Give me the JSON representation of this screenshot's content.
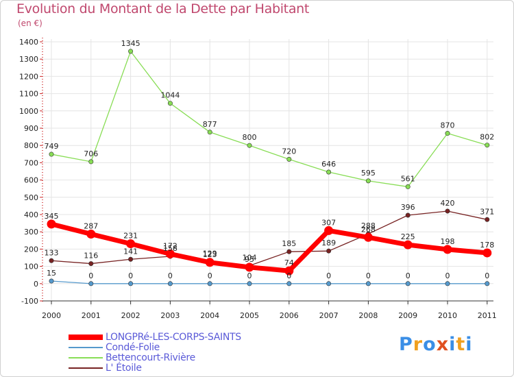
{
  "header": {
    "title": "Evolution du Montant de la Dette par Habitant",
    "unit": "(en €)"
  },
  "brand": {
    "text": "Proxiti",
    "colors": [
      "#3a8ee6",
      "#f0a020",
      "#3a8ee6",
      "#e05020",
      "#3a8ee6",
      "#f0a020",
      "#3a8ee6"
    ]
  },
  "chart_data": {
    "type": "line",
    "title": "Evolution du Montant de la Dette par Habitant",
    "ylabel": "(en €)",
    "xlabel": "",
    "x": [
      "2000",
      "2001",
      "2002",
      "2003",
      "2004",
      "2005",
      "2006",
      "2007",
      "2008",
      "2009",
      "2010",
      "2011"
    ],
    "ylim": [
      -100,
      1400
    ],
    "yticks": [
      "-100",
      "0",
      "100",
      "200",
      "300",
      "400",
      "500",
      "600",
      "700",
      "800",
      "900",
      "1000",
      "1100",
      "1200",
      "1300",
      "1400"
    ],
    "legend_position": "bottom-left",
    "series": [
      {
        "name": "LONGPRé-LES-CORPS-SAINTS",
        "color": "#ff0000",
        "values": [
          345,
          287,
          231,
          172,
          123,
          95,
          74,
          307,
          268,
          225,
          198,
          178
        ],
        "labels": [
          "345",
          "287",
          "231",
          "172",
          "123",
          "95",
          "74",
          "307",
          "268",
          "225",
          "198",
          "178"
        ]
      },
      {
        "name": "Condé-Folie",
        "color": "#5599cc",
        "values": [
          15,
          0,
          0,
          0,
          0,
          0,
          0,
          0,
          0,
          0,
          0,
          0
        ],
        "labels": [
          "15",
          "0",
          "0",
          "0",
          "0",
          "0",
          "0",
          "0",
          "0",
          "0",
          "0",
          "0"
        ]
      },
      {
        "name": "Bettencourt-Rivière",
        "color": "#88dd55",
        "values": [
          749,
          706,
          1345,
          1044,
          877,
          800,
          720,
          646,
          595,
          561,
          870,
          802
        ],
        "labels": [
          "749",
          "706",
          "1345",
          "1044",
          "877",
          "800",
          "720",
          "646",
          "595",
          "561",
          "870",
          "802"
        ]
      },
      {
        "name": "L' Étoile",
        "color": "#772222",
        "values": [
          133,
          116,
          141,
          158,
          129,
          104,
          185,
          189,
          288,
          396,
          420,
          371
        ],
        "labels": [
          "133",
          "116",
          "141",
          "158",
          "129",
          "104",
          "185",
          "189",
          "288",
          "396",
          "420",
          "371"
        ]
      }
    ]
  }
}
